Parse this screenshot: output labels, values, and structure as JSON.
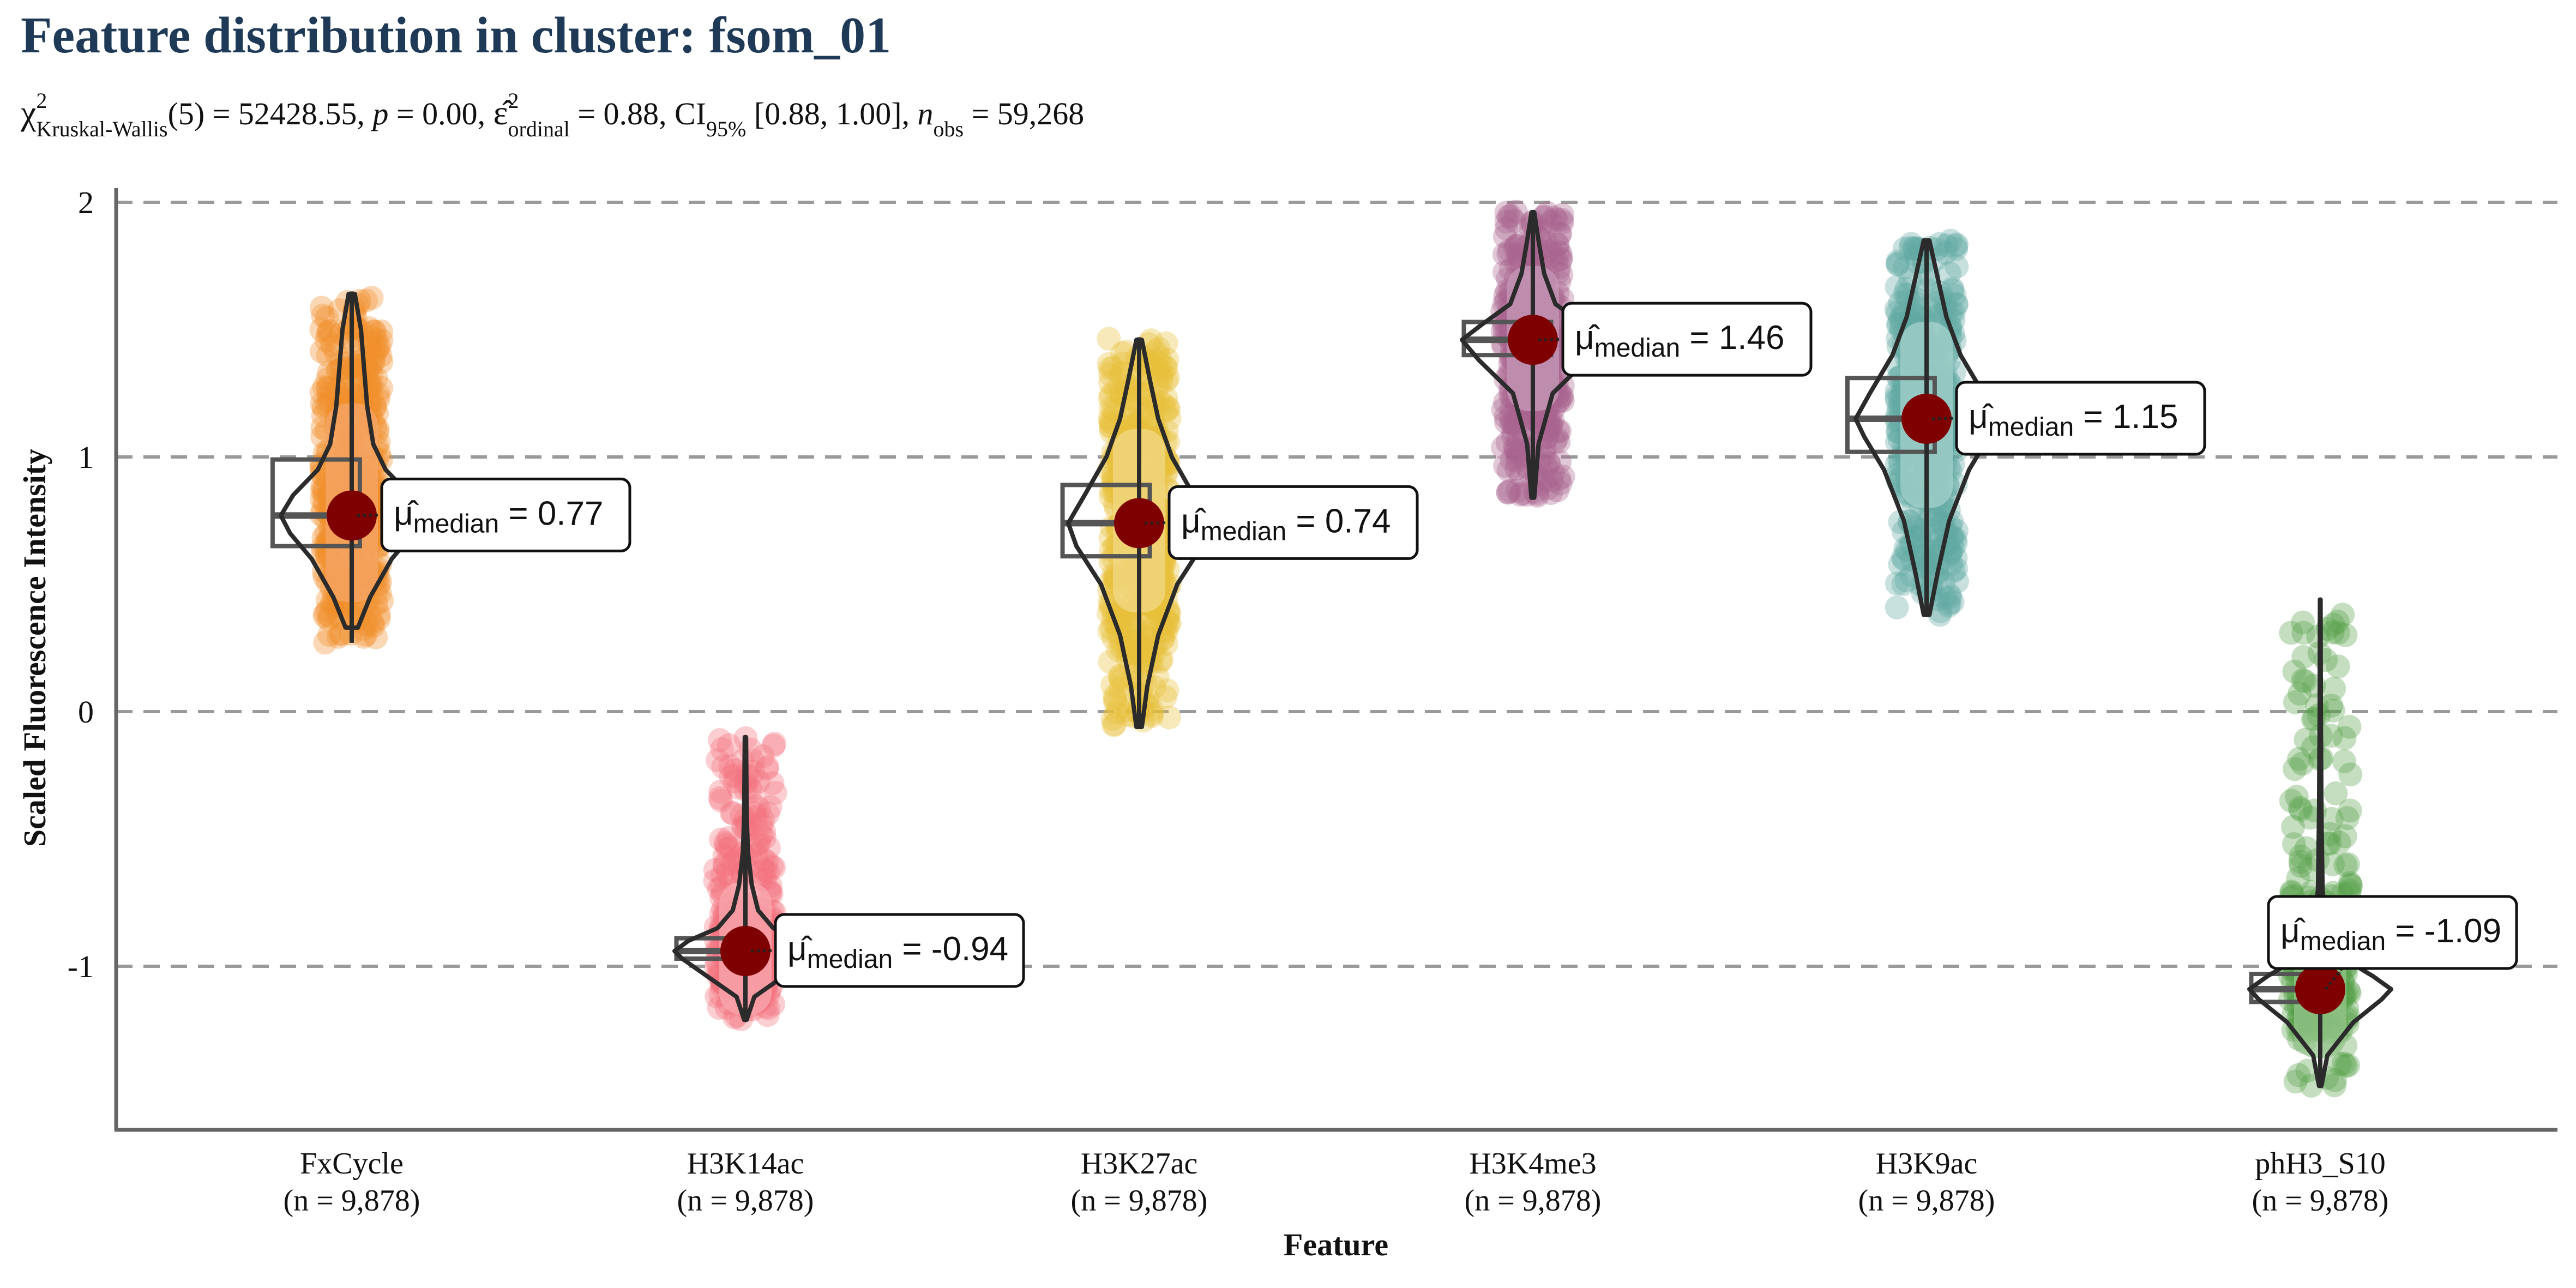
{
  "chart_data": {
    "type": "violin",
    "title": "Feature distribution in cluster: fsom_01",
    "subtitle": {
      "chi_symbol": "χ",
      "chi_sup": "2",
      "test_sub": "Kruskal-Wallis",
      "stat_text": "(5) = 52428.55, ",
      "p_sym": "p",
      "p_text": " = 0.00, ",
      "eps_sym": "ε̂",
      "eps_sup": "2",
      "eps_sub": "ordinal",
      "eps_text": " = 0.88, CI",
      "ci_sub": "95%",
      "ci_text": " [0.88, 1.00], ",
      "n_sym": "n",
      "n_sub": "obs",
      "n_text": " = 59,268"
    },
    "xlabel": "Feature",
    "ylabel": "Scaled Fluorescence Intensity",
    "ylim": [
      -1.65,
      2.1
    ],
    "yticks": [
      2,
      1,
      0,
      -1
    ],
    "ytick_labels": [
      "2",
      "1",
      "0",
      "-1"
    ],
    "grid": "horizontal dashed at ticks",
    "median_marker_color": "#7f0000",
    "median_label": {
      "mu": "μ̂",
      "sub": "median",
      "eq": " = "
    },
    "categories": [
      {
        "name": "FxCycle",
        "n_label": "(n = 9,878)",
        "color": "#f28e2b",
        "fill": "#f4a66a",
        "median": 0.77,
        "median_text": "0.77",
        "q1": 0.65,
        "q3": 0.99,
        "min": 0.27,
        "max": 1.65,
        "box_offset": -0.14,
        "violin": [
          [
            0.33,
            0.02
          ],
          [
            0.45,
            0.06
          ],
          [
            0.6,
            0.13
          ],
          [
            0.7,
            0.2
          ],
          [
            0.77,
            0.23
          ],
          [
            0.85,
            0.19
          ],
          [
            0.95,
            0.11
          ],
          [
            1.05,
            0.07
          ],
          [
            1.2,
            0.05
          ],
          [
            1.35,
            0.04
          ],
          [
            1.5,
            0.03
          ],
          [
            1.64,
            0.01
          ]
        ]
      },
      {
        "name": "H3K14ac",
        "n_label": "(n = 9,878)",
        "color": "#f4727f",
        "fill": "#f8a8b0",
        "median": -0.94,
        "median_text": "-0.94",
        "q1": -0.97,
        "q3": -0.89,
        "min": -1.21,
        "max": -0.1,
        "box_offset": -0.1,
        "violin": [
          [
            -1.21,
            0.01
          ],
          [
            -1.12,
            0.07
          ],
          [
            -1.04,
            0.3
          ],
          [
            -0.97,
            0.5
          ],
          [
            -0.94,
            0.56
          ],
          [
            -0.9,
            0.45
          ],
          [
            -0.85,
            0.22
          ],
          [
            -0.78,
            0.1
          ],
          [
            -0.68,
            0.05
          ],
          [
            -0.55,
            0.02
          ],
          [
            -0.4,
            0.01
          ],
          [
            -0.1,
            0.005
          ]
        ]
      },
      {
        "name": "H3K27ac",
        "n_label": "(n = 9,878)",
        "color": "#e9c03a",
        "fill": "#f1d886",
        "median": 0.74,
        "median_text": "0.74",
        "q1": 0.61,
        "q3": 0.89,
        "min": -0.06,
        "max": 1.47,
        "box_offset": -0.13,
        "violin": [
          [
            -0.06,
            0.01
          ],
          [
            0.1,
            0.03
          ],
          [
            0.3,
            0.07
          ],
          [
            0.5,
            0.14
          ],
          [
            0.65,
            0.23
          ],
          [
            0.74,
            0.26
          ],
          [
            0.85,
            0.2
          ],
          [
            1.0,
            0.12
          ],
          [
            1.15,
            0.07
          ],
          [
            1.3,
            0.04
          ],
          [
            1.46,
            0.01
          ]
        ]
      },
      {
        "name": "H3K4me3",
        "n_label": "(n = 9,878)",
        "color": "#a8648f",
        "fill": "#c69ab7",
        "median": 1.46,
        "median_text": "1.46",
        "q1": 1.4,
        "q3": 1.53,
        "min": 0.84,
        "max": 1.97,
        "box_offset": -0.1,
        "violin": [
          [
            0.84,
            0.01
          ],
          [
            1.05,
            0.04
          ],
          [
            1.25,
            0.14
          ],
          [
            1.38,
            0.38
          ],
          [
            1.46,
            0.5
          ],
          [
            1.52,
            0.36
          ],
          [
            1.6,
            0.16
          ],
          [
            1.72,
            0.08
          ],
          [
            1.85,
            0.04
          ],
          [
            1.96,
            0.01
          ]
        ]
      },
      {
        "name": "H3K9ac",
        "n_label": "(n = 9,878)",
        "color": "#62aaa3",
        "fill": "#a6d1cc",
        "median": 1.15,
        "median_text": "1.15",
        "q1": 1.02,
        "q3": 1.31,
        "min": 0.38,
        "max": 1.85,
        "box_offset": -0.14,
        "violin": [
          [
            0.38,
            0.01
          ],
          [
            0.55,
            0.04
          ],
          [
            0.75,
            0.08
          ],
          [
            0.95,
            0.15
          ],
          [
            1.08,
            0.22
          ],
          [
            1.15,
            0.25
          ],
          [
            1.25,
            0.2
          ],
          [
            1.4,
            0.12
          ],
          [
            1.55,
            0.07
          ],
          [
            1.7,
            0.04
          ],
          [
            1.85,
            0.01
          ]
        ]
      },
      {
        "name": "phH3_S10",
        "n_label": "(n = 9,878)",
        "color": "#56a047",
        "fill": "#96c58c",
        "median": -1.09,
        "median_text": "-1.09",
        "q1": -1.14,
        "q3": -1.03,
        "min": -1.47,
        "max": 0.44,
        "box_offset": -0.1,
        "violin": [
          [
            -1.47,
            0.01
          ],
          [
            -1.35,
            0.06
          ],
          [
            -1.22,
            0.28
          ],
          [
            -1.13,
            0.52
          ],
          [
            -1.09,
            0.6
          ],
          [
            -1.04,
            0.45
          ],
          [
            -0.97,
            0.2
          ],
          [
            -0.88,
            0.06
          ],
          [
            -0.7,
            0.02
          ],
          [
            -0.4,
            0.01
          ],
          [
            0.0,
            0.005
          ],
          [
            0.44,
            0.003
          ]
        ]
      }
    ]
  }
}
